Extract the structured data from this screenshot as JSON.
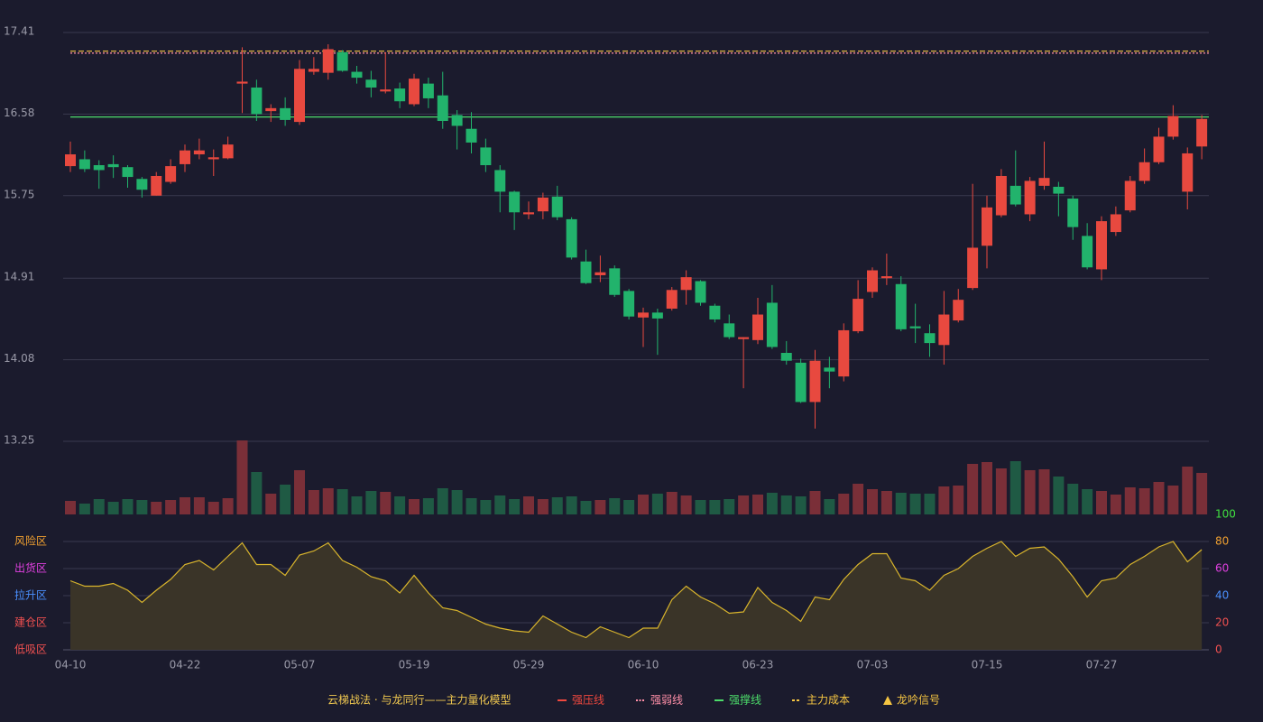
{
  "chart_data": [
    {
      "type": "candlestick",
      "categories": [
        "04-10",
        null,
        null,
        null,
        null,
        null,
        null,
        null,
        "04-22",
        null,
        null,
        null,
        null,
        null,
        null,
        null,
        "05-07",
        null,
        null,
        null,
        null,
        null,
        null,
        null,
        "05-19",
        null,
        null,
        null,
        null,
        null,
        null,
        null,
        "05-29",
        null,
        null,
        null,
        null,
        null,
        null,
        null,
        "06-10",
        null,
        null,
        null,
        null,
        null,
        null,
        null,
        "06-23",
        null,
        null,
        null,
        null,
        null,
        null,
        null,
        "07-03",
        null,
        null,
        null,
        null,
        null,
        null,
        null,
        "07-15",
        null,
        null,
        null,
        null,
        null,
        null,
        null,
        "07-27",
        null,
        null,
        null,
        null,
        null,
        null,
        null
      ],
      "open": [
        16.05,
        16.12,
        16.06,
        16.07,
        16.04,
        15.92,
        15.75,
        15.89,
        16.07,
        16.17,
        16.12,
        16.13,
        16.89,
        16.85,
        16.61,
        16.64,
        16.5,
        17.01,
        17.0,
        17.21,
        17.01,
        16.93,
        16.81,
        16.84,
        16.68,
        16.89,
        16.77,
        16.57,
        16.43,
        16.24,
        16.01,
        15.79,
        15.56,
        15.59,
        15.74,
        15.51,
        15.08,
        14.94,
        15.01,
        14.78,
        14.51,
        14.56,
        14.6,
        14.79,
        14.88,
        14.63,
        14.45,
        14.29,
        14.28,
        14.66,
        14.15,
        14.05,
        13.65,
        14.0,
        13.91,
        14.37,
        14.77,
        14.91,
        14.85,
        14.42,
        14.35,
        14.23,
        14.48,
        14.81,
        15.24,
        15.55,
        15.85,
        15.56,
        15.85,
        15.84,
        15.72,
        15.34,
        15.0,
        15.38,
        15.6,
        15.9,
        16.09,
        16.35,
        15.79,
        16.25
      ],
      "close": [
        16.17,
        16.02,
        16.01,
        16.04,
        15.94,
        15.81,
        15.95,
        16.05,
        16.21,
        16.21,
        16.14,
        16.27,
        16.91,
        16.58,
        16.64,
        16.52,
        17.04,
        17.04,
        17.24,
        17.02,
        16.95,
        16.85,
        16.83,
        16.71,
        16.94,
        16.74,
        16.51,
        16.46,
        16.29,
        16.06,
        15.79,
        15.58,
        15.58,
        15.73,
        15.53,
        15.12,
        14.86,
        14.97,
        14.74,
        14.52,
        14.56,
        14.5,
        14.79,
        14.92,
        14.66,
        14.49,
        14.31,
        14.31,
        14.54,
        14.21,
        14.07,
        13.65,
        14.07,
        13.96,
        14.38,
        14.7,
        14.99,
        14.93,
        14.39,
        14.4,
        14.25,
        14.54,
        14.69,
        15.22,
        15.63,
        15.95,
        15.66,
        15.9,
        15.93,
        15.77,
        15.43,
        15.02,
        15.49,
        15.56,
        15.9,
        16.09,
        16.35,
        16.56,
        16.18,
        16.53
      ],
      "high": [
        16.3,
        16.21,
        16.11,
        16.16,
        16.06,
        15.94,
        15.99,
        16.12,
        16.27,
        16.33,
        16.22,
        16.35,
        17.26,
        16.93,
        16.68,
        16.75,
        17.13,
        17.16,
        17.29,
        17.23,
        17.07,
        17.02,
        17.21,
        16.9,
        16.99,
        16.95,
        17.01,
        16.62,
        16.6,
        16.33,
        16.06,
        15.8,
        15.69,
        15.78,
        15.85,
        15.53,
        15.2,
        15.14,
        15.04,
        14.8,
        14.61,
        14.6,
        14.82,
        14.99,
        14.89,
        14.65,
        14.54,
        14.31,
        14.71,
        14.84,
        14.27,
        14.09,
        14.18,
        14.11,
        14.45,
        14.89,
        15.02,
        15.16,
        14.93,
        14.65,
        14.44,
        14.78,
        14.8,
        15.87,
        15.75,
        16.02,
        16.21,
        15.94,
        16.3,
        15.89,
        15.75,
        15.47,
        15.54,
        15.64,
        15.95,
        16.23,
        16.44,
        16.67,
        16.24,
        16.57
      ],
      "low": [
        15.99,
        15.99,
        15.82,
        15.93,
        15.83,
        15.73,
        15.75,
        15.87,
        15.99,
        16.12,
        15.95,
        16.12,
        16.59,
        16.51,
        16.5,
        16.46,
        16.47,
        16.98,
        16.93,
        17.01,
        16.89,
        16.75,
        16.79,
        16.64,
        16.66,
        16.64,
        16.43,
        16.22,
        16.18,
        15.99,
        15.58,
        15.4,
        15.51,
        15.51,
        15.5,
        15.1,
        14.85,
        14.87,
        14.72,
        14.49,
        14.21,
        14.13,
        14.58,
        14.64,
        14.63,
        14.46,
        14.29,
        13.79,
        14.24,
        14.19,
        14.03,
        13.64,
        13.38,
        13.79,
        13.86,
        14.35,
        14.71,
        14.84,
        14.37,
        14.25,
        14.11,
        14.03,
        14.46,
        14.79,
        15.01,
        15.53,
        15.64,
        15.49,
        15.81,
        15.54,
        15.3,
        15.0,
        14.89,
        15.34,
        15.58,
        15.87,
        16.07,
        16.32,
        15.61,
        16.12
      ],
      "up_color": "#e8493f",
      "down_color": "#22b36c",
      "ylim": [
        13.25,
        17.41
      ],
      "yticks": [
        17.41,
        16.58,
        15.75,
        14.91,
        14.08,
        13.25
      ],
      "grid": true,
      "lines": [
        {
          "name": "强压线",
          "color": "#f0483e",
          "style": "solid"
        },
        {
          "name": "强弱线",
          "color": "#ff8fa8",
          "style": "dotted",
          "value": 17.2
        },
        {
          "name": "强撑线",
          "color": "#4cdc6a",
          "style": "solid",
          "value": 16.55
        },
        {
          "name": "主力成本",
          "color": "#f5c542",
          "style": "dashed",
          "value": 17.22
        }
      ],
      "signal": {
        "name": "龙吟信号",
        "color": "#f5c542",
        "marker": "triangle"
      }
    },
    {
      "type": "bar",
      "values": [
        15,
        12,
        17,
        14,
        17,
        16,
        14,
        16,
        19,
        19,
        14,
        18,
        82,
        47,
        23,
        33,
        49,
        27,
        29,
        28,
        20,
        26,
        25,
        20,
        17,
        18,
        29,
        27,
        18,
        16,
        21,
        17,
        20,
        17,
        19,
        20,
        15,
        16,
        18,
        16,
        22,
        23,
        25,
        21,
        16,
        16,
        17,
        21,
        22,
        24,
        21,
        20,
        26,
        17,
        23,
        34,
        28,
        26,
        24,
        23,
        23,
        31,
        32,
        56,
        58,
        51,
        59,
        49,
        50,
        42,
        34,
        28,
        26,
        22,
        30,
        29,
        36,
        32,
        53,
        46
      ],
      "up_color": "#7a2f38",
      "down_color": "#1f5a44"
    },
    {
      "type": "line",
      "values": [
        51,
        47,
        47,
        49,
        44,
        35,
        44,
        52,
        63,
        66,
        59,
        69,
        79,
        63,
        63,
        55,
        70,
        73,
        79,
        66,
        61,
        54,
        51,
        42,
        55,
        42,
        31,
        29,
        24,
        19,
        16,
        14,
        13,
        25,
        19,
        13,
        9,
        17,
        13,
        9,
        16,
        16,
        37,
        47,
        39,
        34,
        27,
        28,
        46,
        35,
        29,
        21,
        39,
        37,
        52,
        63,
        71,
        71,
        53,
        51,
        44,
        55,
        60,
        69,
        75,
        80,
        69,
        75,
        76,
        67,
        54,
        39,
        51,
        53,
        63,
        69,
        76,
        80,
        65,
        74
      ],
      "color": "#d9b52c",
      "fill": "#3a3428",
      "ylim": [
        0,
        100
      ],
      "yticks": [
        {
          "value": 80,
          "label": "风险区"
        },
        {
          "value": 60,
          "label": "出货区"
        },
        {
          "value": 40,
          "label": "拉升区"
        },
        {
          "value": 20,
          "label": "建仓区"
        },
        {
          "value": 0,
          "label": "低吸区"
        }
      ],
      "ytick_colors": [
        "#f0a030",
        "#e040e0",
        "#4a90ff",
        "#f05050",
        "#f05050"
      ],
      "y2lim": [
        0,
        100
      ],
      "y2ticks": [
        100,
        80,
        60,
        40,
        20,
        0
      ],
      "y2tick_colors": [
        "#40e040",
        "#f0a030",
        "#e040e0",
        "#4a90ff",
        "#f05050",
        "#f05050"
      ]
    }
  ],
  "legend": {
    "title": "云梯战法 · 与龙同行——主力量化模型"
  }
}
